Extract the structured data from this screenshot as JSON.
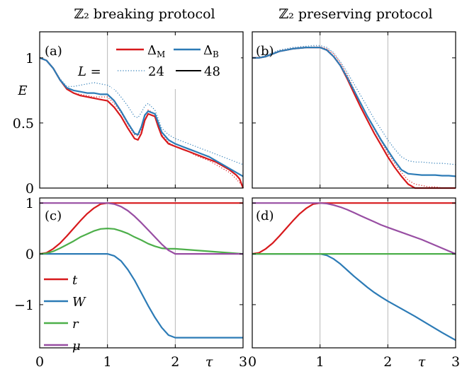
{
  "titles": {
    "left": "ℤ₂ breaking protocol",
    "right": "ℤ₂ preserving protocol"
  },
  "labels": {
    "a": "(a)",
    "b": "(b)",
    "c": "(c)",
    "d": "(d)",
    "E": "E",
    "tau": "τ",
    "L_eq": "L ="
  },
  "ticks": {
    "x": [
      "0",
      "1",
      "2",
      "3"
    ],
    "y_top": [
      "0",
      "0.5",
      "1"
    ],
    "y_bottom": [
      "−1",
      "0",
      "1"
    ]
  },
  "legend_top": {
    "delta_m": "Δ_M",
    "delta_b": "Δ_B",
    "L24": "24",
    "L48": "48"
  },
  "legend_bottom": {
    "t": "t",
    "W": "W",
    "r": "r",
    "mu": "μ"
  },
  "colors": {
    "red": "#d7191c",
    "blue": "#2c7bb6",
    "green": "#4daf4a",
    "purple": "#984ea3"
  },
  "chart_data": [
    {
      "type": "line",
      "panel": "(a)",
      "title": "ℤ₂ breaking protocol",
      "xlabel": "",
      "ylabel": "E",
      "xlim": [
        0,
        3
      ],
      "ylim": [
        0,
        1.2
      ],
      "series": [
        {
          "name": "Δ_M, L=48",
          "style": "solid",
          "color": "#d7191c",
          "x": [
            0,
            0.1,
            0.2,
            0.3,
            0.4,
            0.5,
            0.6,
            0.7,
            0.8,
            0.9,
            1.0,
            1.1,
            1.2,
            1.3,
            1.4,
            1.45,
            1.5,
            1.55,
            1.6,
            1.7,
            1.75,
            1.8,
            1.9,
            2.0,
            2.1,
            2.2,
            2.3,
            2.4,
            2.5,
            2.6,
            2.7,
            2.8,
            2.9,
            2.95,
            3.0
          ],
          "y": [
            1.0,
            0.98,
            0.92,
            0.83,
            0.76,
            0.73,
            0.71,
            0.7,
            0.69,
            0.68,
            0.67,
            0.62,
            0.55,
            0.46,
            0.38,
            0.37,
            0.42,
            0.52,
            0.57,
            0.55,
            0.47,
            0.4,
            0.34,
            0.32,
            0.3,
            0.28,
            0.26,
            0.24,
            0.22,
            0.2,
            0.17,
            0.14,
            0.1,
            0.07,
            0.0
          ]
        },
        {
          "name": "Δ_M, L=24",
          "style": "dotted",
          "color": "#d7191c",
          "x": [
            0,
            0.1,
            0.2,
            0.3,
            0.4,
            0.5,
            0.6,
            0.7,
            0.8,
            0.9,
            1.0,
            1.1,
            1.2,
            1.3,
            1.4,
            1.45,
            1.5,
            1.55,
            1.6,
            1.7,
            1.75,
            1.8,
            1.9,
            2.0,
            2.1,
            2.2,
            2.3,
            2.4,
            2.5,
            2.6,
            2.7,
            2.8,
            2.9,
            2.95,
            3.0
          ],
          "y": [
            1.0,
            0.98,
            0.92,
            0.83,
            0.76,
            0.73,
            0.72,
            0.71,
            0.7,
            0.7,
            0.7,
            0.65,
            0.58,
            0.49,
            0.41,
            0.4,
            0.45,
            0.55,
            0.6,
            0.57,
            0.49,
            0.41,
            0.35,
            0.32,
            0.3,
            0.28,
            0.25,
            0.23,
            0.21,
            0.18,
            0.15,
            0.12,
            0.07,
            0.04,
            0.01
          ]
        },
        {
          "name": "Δ_B, L=48",
          "style": "solid",
          "color": "#2c7bb6",
          "x": [
            0,
            0.1,
            0.2,
            0.3,
            0.4,
            0.5,
            0.6,
            0.7,
            0.8,
            0.9,
            1.0,
            1.1,
            1.2,
            1.3,
            1.4,
            1.45,
            1.5,
            1.55,
            1.6,
            1.7,
            1.75,
            1.8,
            1.9,
            2.0,
            2.1,
            2.2,
            2.3,
            2.4,
            2.5,
            2.6,
            2.7,
            2.8,
            2.9,
            3.0
          ],
          "y": [
            1.0,
            0.98,
            0.92,
            0.83,
            0.77,
            0.75,
            0.74,
            0.73,
            0.73,
            0.72,
            0.72,
            0.67,
            0.59,
            0.5,
            0.42,
            0.41,
            0.47,
            0.56,
            0.59,
            0.57,
            0.5,
            0.43,
            0.37,
            0.34,
            0.32,
            0.3,
            0.28,
            0.26,
            0.24,
            0.21,
            0.18,
            0.15,
            0.12,
            0.09
          ]
        },
        {
          "name": "Δ_B, L=24",
          "style": "dotted",
          "color": "#2c7bb6",
          "x": [
            0,
            0.1,
            0.2,
            0.3,
            0.4,
            0.5,
            0.6,
            0.7,
            0.8,
            0.9,
            1.0,
            1.1,
            1.2,
            1.3,
            1.4,
            1.45,
            1.5,
            1.55,
            1.6,
            1.7,
            1.75,
            1.8,
            1.9,
            2.0,
            2.1,
            2.2,
            2.3,
            2.4,
            2.5,
            2.6,
            2.7,
            2.8,
            2.9,
            3.0
          ],
          "y": [
            1.0,
            0.98,
            0.92,
            0.84,
            0.78,
            0.78,
            0.79,
            0.8,
            0.81,
            0.8,
            0.79,
            0.76,
            0.7,
            0.63,
            0.55,
            0.54,
            0.58,
            0.63,
            0.65,
            0.6,
            0.53,
            0.46,
            0.41,
            0.38,
            0.36,
            0.34,
            0.32,
            0.3,
            0.28,
            0.26,
            0.24,
            0.22,
            0.2,
            0.18
          ]
        }
      ]
    },
    {
      "type": "line",
      "panel": "(b)",
      "title": "ℤ₂ preserving protocol",
      "xlabel": "",
      "ylabel": "",
      "xlim": [
        0,
        3
      ],
      "ylim": [
        0,
        1.2
      ],
      "series": [
        {
          "name": "Δ_M, L=48",
          "style": "solid",
          "color": "#d7191c",
          "x": [
            0,
            0.1,
            0.2,
            0.3,
            0.4,
            0.5,
            0.6,
            0.7,
            0.8,
            0.9,
            1.0,
            1.1,
            1.2,
            1.3,
            1.4,
            1.5,
            1.6,
            1.7,
            1.8,
            1.9,
            2.0,
            2.1,
            2.2,
            2.3,
            2.4,
            2.5,
            2.6,
            2.7,
            2.8,
            2.9,
            3.0
          ],
          "y": [
            1.0,
            1.0,
            1.01,
            1.03,
            1.05,
            1.06,
            1.07,
            1.075,
            1.08,
            1.08,
            1.08,
            1.06,
            1.01,
            0.94,
            0.84,
            0.73,
            0.62,
            0.52,
            0.42,
            0.33,
            0.24,
            0.16,
            0.09,
            0.03,
            0.0,
            0.0,
            0.0,
            0.0,
            0.0,
            0.0,
            0.0
          ]
        },
        {
          "name": "Δ_M, L=24",
          "style": "dotted",
          "color": "#d7191c",
          "x": [
            0,
            0.1,
            0.2,
            0.3,
            0.4,
            0.5,
            0.6,
            0.7,
            0.8,
            0.9,
            1.0,
            1.1,
            1.2,
            1.3,
            1.4,
            1.5,
            1.6,
            1.7,
            1.8,
            1.9,
            2.0,
            2.1,
            2.2,
            2.3,
            2.4,
            2.5,
            2.6,
            2.7,
            2.8,
            2.9,
            3.0
          ],
          "y": [
            1.0,
            1.0,
            1.01,
            1.03,
            1.05,
            1.06,
            1.07,
            1.075,
            1.08,
            1.085,
            1.085,
            1.07,
            1.03,
            0.96,
            0.87,
            0.76,
            0.65,
            0.55,
            0.45,
            0.36,
            0.27,
            0.19,
            0.12,
            0.06,
            0.03,
            0.02,
            0.01,
            0.01,
            0.0,
            0.0,
            0.0
          ]
        },
        {
          "name": "Δ_B, L=48",
          "style": "solid",
          "color": "#2c7bb6",
          "x": [
            0,
            0.1,
            0.2,
            0.3,
            0.4,
            0.5,
            0.6,
            0.7,
            0.8,
            0.9,
            1.0,
            1.1,
            1.2,
            1.3,
            1.4,
            1.5,
            1.6,
            1.7,
            1.8,
            1.9,
            2.0,
            2.1,
            2.2,
            2.3,
            2.4,
            2.5,
            2.6,
            2.7,
            2.8,
            2.9,
            3.0
          ],
          "y": [
            1.0,
            1.0,
            1.01,
            1.03,
            1.05,
            1.06,
            1.07,
            1.075,
            1.08,
            1.08,
            1.08,
            1.06,
            1.01,
            0.94,
            0.85,
            0.75,
            0.65,
            0.55,
            0.46,
            0.37,
            0.29,
            0.21,
            0.14,
            0.11,
            0.105,
            0.1,
            0.1,
            0.1,
            0.095,
            0.095,
            0.09
          ]
        },
        {
          "name": "Δ_B, L=24",
          "style": "dotted",
          "color": "#2c7bb6",
          "x": [
            0,
            0.1,
            0.2,
            0.3,
            0.4,
            0.5,
            0.6,
            0.7,
            0.8,
            0.9,
            1.0,
            1.1,
            1.2,
            1.3,
            1.4,
            1.5,
            1.6,
            1.7,
            1.8,
            1.9,
            2.0,
            2.1,
            2.2,
            2.3,
            2.4,
            2.5,
            2.6,
            2.7,
            2.8,
            2.9,
            3.0
          ],
          "y": [
            1.0,
            1.0,
            1.02,
            1.04,
            1.06,
            1.07,
            1.08,
            1.085,
            1.09,
            1.095,
            1.095,
            1.08,
            1.04,
            0.97,
            0.89,
            0.8,
            0.71,
            0.62,
            0.53,
            0.45,
            0.37,
            0.3,
            0.24,
            0.21,
            0.2,
            0.2,
            0.195,
            0.19,
            0.19,
            0.185,
            0.18
          ]
        }
      ]
    },
    {
      "type": "line",
      "panel": "(c)",
      "xlabel": "τ",
      "ylabel": "",
      "xlim": [
        0,
        3
      ],
      "ylim": [
        -1.85,
        1.1
      ],
      "series": [
        {
          "name": "t",
          "color": "#d7191c",
          "x": [
            0,
            0.1,
            0.2,
            0.3,
            0.4,
            0.5,
            0.6,
            0.7,
            0.8,
            0.9,
            1.0,
            1.1,
            1.5,
            2.0,
            2.5,
            3.0
          ],
          "y": [
            0,
            0.02,
            0.1,
            0.21,
            0.35,
            0.5,
            0.65,
            0.79,
            0.9,
            0.98,
            1.0,
            1.0,
            1.0,
            1.0,
            1.0,
            1.0
          ]
        },
        {
          "name": "W",
          "color": "#2c7bb6",
          "x": [
            0,
            0.5,
            1.0,
            1.1,
            1.2,
            1.3,
            1.4,
            1.5,
            1.6,
            1.7,
            1.8,
            1.9,
            2.0,
            2.5,
            3.0
          ],
          "y": [
            0,
            0,
            0,
            -0.04,
            -0.14,
            -0.31,
            -0.52,
            -0.77,
            -1.02,
            -1.25,
            -1.45,
            -1.6,
            -1.65,
            -1.65,
            -1.65
          ]
        },
        {
          "name": "r",
          "color": "#4daf4a",
          "x": [
            0,
            0.1,
            0.2,
            0.3,
            0.4,
            0.5,
            0.6,
            0.7,
            0.8,
            0.9,
            1.0,
            1.1,
            1.2,
            1.3,
            1.4,
            1.5,
            1.6,
            1.7,
            1.8,
            1.9,
            2.0,
            2.5,
            3.0
          ],
          "y": [
            0,
            0.01,
            0.05,
            0.11,
            0.18,
            0.25,
            0.33,
            0.39,
            0.45,
            0.49,
            0.5,
            0.49,
            0.45,
            0.4,
            0.33,
            0.27,
            0.2,
            0.15,
            0.11,
            0.1,
            0.1,
            0.05,
            0.0
          ]
        },
        {
          "name": "μ",
          "color": "#984ea3",
          "x": [
            0,
            0.5,
            1.0,
            1.1,
            1.2,
            1.3,
            1.4,
            1.5,
            1.6,
            1.7,
            1.8,
            1.9,
            2.0,
            2.5,
            3.0
          ],
          "y": [
            1,
            1,
            1,
            0.98,
            0.93,
            0.85,
            0.74,
            0.61,
            0.47,
            0.33,
            0.19,
            0.07,
            0.0,
            0.0,
            0.0
          ]
        }
      ]
    },
    {
      "type": "line",
      "panel": "(d)",
      "xlabel": "τ",
      "ylabel": "",
      "xlim": [
        0,
        3
      ],
      "ylim": [
        -1.85,
        1.1
      ],
      "series": [
        {
          "name": "t",
          "color": "#d7191c",
          "x": [
            0,
            0.1,
            0.2,
            0.3,
            0.4,
            0.5,
            0.6,
            0.7,
            0.8,
            0.9,
            1.0,
            1.1,
            1.5,
            2.0,
            2.5,
            3.0
          ],
          "y": [
            0,
            0.02,
            0.1,
            0.21,
            0.35,
            0.5,
            0.65,
            0.79,
            0.9,
            0.98,
            1.0,
            1.0,
            1.0,
            1.0,
            1.0,
            1.0
          ]
        },
        {
          "name": "W",
          "color": "#2c7bb6",
          "x": [
            0,
            0.5,
            1.0,
            1.1,
            1.2,
            1.3,
            1.4,
            1.5,
            1.6,
            1.7,
            1.8,
            1.9,
            2.0,
            2.2,
            2.4,
            2.6,
            2.8,
            3.0
          ],
          "y": [
            0,
            0,
            0,
            -0.03,
            -0.1,
            -0.2,
            -0.32,
            -0.44,
            -0.55,
            -0.66,
            -0.76,
            -0.85,
            -0.93,
            -1.08,
            -1.23,
            -1.39,
            -1.55,
            -1.7
          ]
        },
        {
          "name": "r",
          "color": "#4daf4a",
          "x": [
            0,
            1,
            2,
            3
          ],
          "y": [
            0,
            0,
            0,
            0
          ]
        },
        {
          "name": "μ",
          "color": "#984ea3",
          "x": [
            0,
            0.5,
            1.0,
            1.1,
            1.2,
            1.3,
            1.4,
            1.5,
            1.6,
            1.7,
            1.8,
            1.9,
            2.0,
            2.5,
            3.0
          ],
          "y": [
            1,
            1,
            1,
            0.99,
            0.96,
            0.92,
            0.87,
            0.81,
            0.75,
            0.69,
            0.63,
            0.57,
            0.52,
            0.28,
            0.0
          ]
        }
      ]
    }
  ]
}
